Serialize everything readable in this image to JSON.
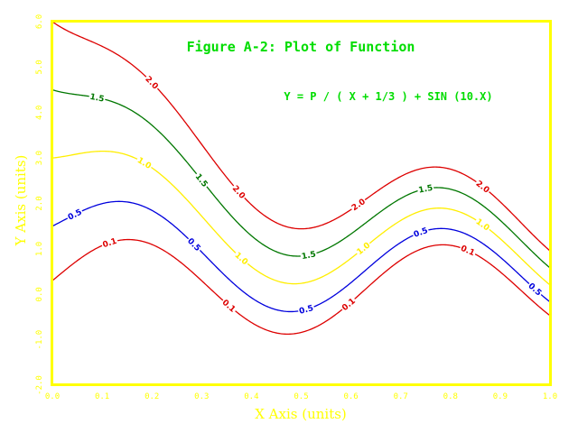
{
  "chart_data": {
    "type": "line",
    "title": "Figure A-2: Plot of Function",
    "equation": "Y = P / ( X + 1/3 ) + SIN (10.X)",
    "xlabel": "X Axis (units)",
    "ylabel": "Y Axis (units)",
    "xlim": [
      0.0,
      1.0
    ],
    "ylim": [
      -2.0,
      6.0
    ],
    "x_ticks": [
      "0.0",
      "0.1",
      "0.2",
      "0.3",
      "0.4",
      "0.5",
      "0.6",
      "0.7",
      "0.8",
      "0.9",
      "1.0"
    ],
    "y_ticks": [
      "-2.0",
      "-1.0",
      "0.0",
      "1.0",
      "2.0",
      "3.0",
      "4.0",
      "5.0",
      "6.0"
    ],
    "grid": false,
    "legend": "none",
    "series": [
      {
        "name": "2.0",
        "color": "#dd0000",
        "label_x": [
          0.2,
          0.375,
          0.615,
          0.865
        ]
      },
      {
        "name": "1.5",
        "color": "#007700",
        "label_x": [
          0.09,
          0.3,
          0.515,
          0.75
        ]
      },
      {
        "name": "1.0",
        "color": "#ffee00",
        "label_x": [
          0.185,
          0.38,
          0.625,
          0.865
        ]
      },
      {
        "name": "0.5",
        "color": "#0000dd",
        "label_x": [
          0.045,
          0.285,
          0.51,
          0.74,
          0.97
        ]
      },
      {
        "name": "0.1",
        "color": "#dd0000",
        "label_x": [
          0.115,
          0.355,
          0.595,
          0.835
        ]
      }
    ],
    "colors": {
      "frame": "#ffff00",
      "title": "#00dd00",
      "ticks": "#ffff00",
      "axis_titles": "#ffff00",
      "background": "#ffffff"
    }
  }
}
